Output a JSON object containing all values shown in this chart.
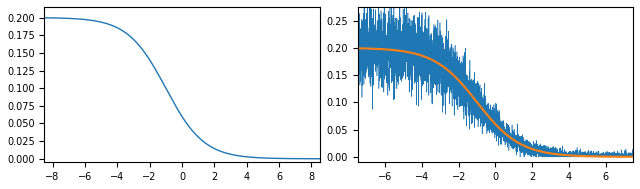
{
  "left_xlim": [
    -8.5,
    8.5
  ],
  "left_ylim": [
    -0.005,
    0.215
  ],
  "left_xticks": [
    -8,
    -6,
    -4,
    -2,
    0,
    2,
    4,
    6,
    8
  ],
  "left_yticks": [
    0.0,
    0.025,
    0.05,
    0.075,
    0.1,
    0.125,
    0.15,
    0.175,
    0.2
  ],
  "right_xlim": [
    -7.5,
    7.5
  ],
  "right_ylim": [
    -0.01,
    0.275
  ],
  "right_xticks": [
    -6,
    -4,
    -2,
    0,
    2,
    4,
    6
  ],
  "right_yticks": [
    0.0,
    0.05,
    0.1,
    0.15,
    0.2,
    0.25
  ],
  "smooth_color": "#1f77b4",
  "noisy_color": "#1f77b4",
  "orange_color": "#ff7f0e",
  "smooth_amplitude": 0.2,
  "noisy_amplitude": 0.2,
  "noise_std": 0.03,
  "sigmoid_shift": -1.0,
  "sigmoid_scale": 0.85,
  "noise_seed": 42,
  "n_points_smooth": 2000,
  "n_points_noisy": 5000
}
